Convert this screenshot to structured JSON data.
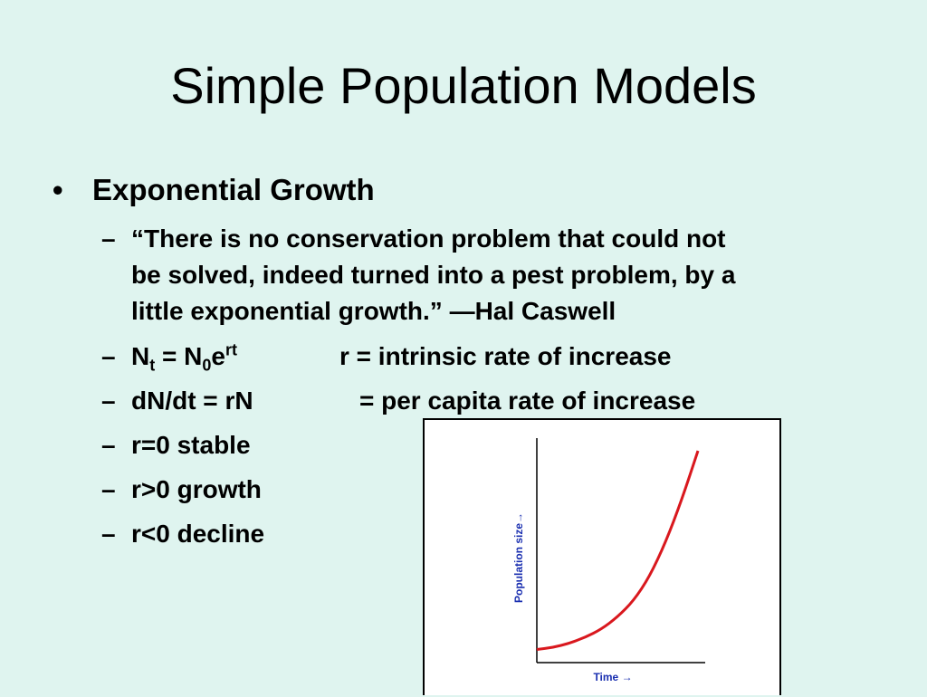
{
  "slide": {
    "title": "Simple Population Models",
    "bullet": "Exponential Growth",
    "quote_lines": [
      "“There is no conservation problem that could not",
      "be solved, indeed turned into a pest problem, by a",
      "little exponential growth.” —Hal Caswell"
    ],
    "formula1": {
      "n": "N",
      "t_sub": "t",
      "eq": " = N",
      "zero_sub": "0",
      "e": "e",
      "rt_sup": "rt",
      "desc": "r = intrinsic rate of increase"
    },
    "formula2": {
      "expr": "dN/dt = rN",
      "desc": "= per capita rate of increase"
    },
    "items": [
      "r=0 stable",
      "r>0 growth",
      "r<0 decline"
    ],
    "dash": "–",
    "dot": "•"
  },
  "chart_data": {
    "type": "line",
    "xlabel": "Time",
    "ylabel": "Population size",
    "arrow": "→",
    "curve_color": "#d9181e",
    "axis_label_color": "#1a2fb0",
    "series": [
      {
        "x": [
          0,
          0.1,
          0.2,
          0.3,
          0.4,
          0.5,
          0.6,
          0.7,
          0.8,
          0.9,
          1.0
        ],
        "values": [
          0.02,
          0.03,
          0.05,
          0.08,
          0.12,
          0.18,
          0.26,
          0.38,
          0.55,
          0.76,
          1.0
        ]
      }
    ]
  }
}
